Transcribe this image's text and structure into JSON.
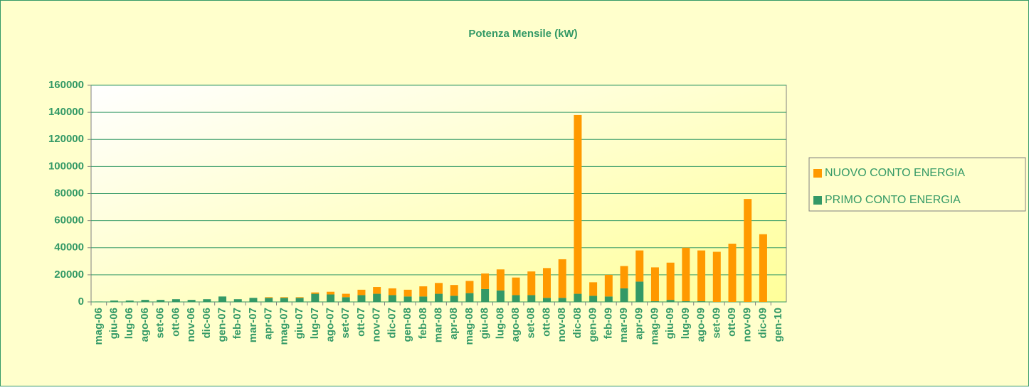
{
  "chart_data": {
    "type": "stacked_bar",
    "title": "Potenza Mensile (kW)",
    "categories": [
      "mag-06",
      "giu-06",
      "lug-06",
      "ago-06",
      "set-06",
      "ott-06",
      "nov-06",
      "dic-06",
      "gen-07",
      "feb-07",
      "mar-07",
      "apr-07",
      "mag-07",
      "giu-07",
      "lug-07",
      "ago-07",
      "set-07",
      "ott-07",
      "nov-07",
      "dic-07",
      "gen-08",
      "feb-08",
      "mar-08",
      "apr-08",
      "mag-08",
      "giu-08",
      "lug-08",
      "ago-08",
      "set-08",
      "ott-08",
      "nov-08",
      "dic-08",
      "gen-09",
      "feb-09",
      "mar-09",
      "apr-09",
      "mag-09",
      "giu-09",
      "lug-09",
      "ago-09",
      "set-09",
      "ott-09",
      "nov-09",
      "dic-09",
      "gen-10"
    ],
    "series": [
      {
        "name": "NUOVO CONTO ENERGIA",
        "color": "#ff9900",
        "values": [
          0,
          0,
          0,
          0,
          0,
          0,
          0,
          0,
          0,
          0,
          0,
          500,
          500,
          500,
          1000,
          2000,
          2500,
          4000,
          5000,
          5000,
          5000,
          7500,
          8000,
          8000,
          9000,
          11500,
          15500,
          13000,
          17500,
          22000,
          28500,
          132000,
          10000,
          16000,
          16500,
          23000,
          25000,
          27500,
          39500,
          37500,
          37000,
          43000,
          76000,
          50000,
          0
        ]
      },
      {
        "name": "PRIMO CONTO ENERGIA",
        "color": "#339966",
        "values": [
          300,
          1000,
          1000,
          1500,
          1500,
          2000,
          1500,
          2000,
          4000,
          2000,
          3000,
          3000,
          3000,
          3000,
          6000,
          5500,
          3500,
          5000,
          6000,
          5000,
          4000,
          4000,
          6000,
          4500,
          6500,
          9500,
          8500,
          5000,
          5000,
          3000,
          3000,
          6000,
          4500,
          4000,
          10000,
          15000,
          500,
          1500,
          500,
          500,
          0,
          0,
          0,
          0,
          0
        ]
      }
    ],
    "ylim": [
      0,
      160000
    ],
    "yticks": [
      0,
      20000,
      40000,
      60000,
      80000,
      100000,
      120000,
      140000,
      160000
    ],
    "grid": true,
    "legend": "right"
  }
}
